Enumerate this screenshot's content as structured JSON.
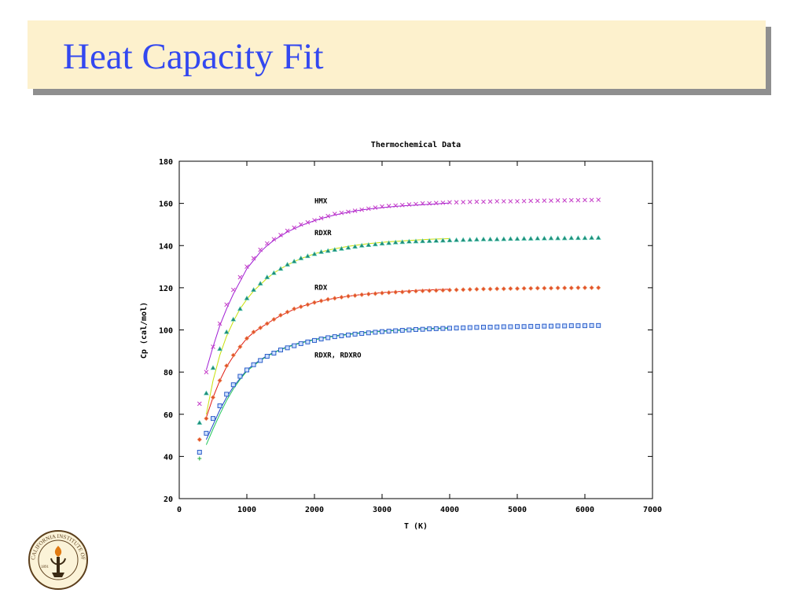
{
  "slide": {
    "title": "Heat Capacity Fit"
  },
  "logo": {
    "text": "CALIFORNIA INSTITUTE OF TECHNOLOGY",
    "year": "1891"
  },
  "colors": {
    "title": "#3348f0",
    "title_bg": "#fdf1cd",
    "title_shadow": "#8f8f8f",
    "hmx": "#c43cc7",
    "rdxr": "#1e8c78",
    "rdx": "#e1542b",
    "rdxr_rdxro": "#2c5fc9",
    "fit_hmx": "#a01dd4",
    "fit_rdxr": "#c8e00a",
    "fit_rdx": "#e01a10",
    "fit_blue": "#1b45c4",
    "fit_green": "#20c65a"
  },
  "chart_data": {
    "type": "scatter",
    "title": "Thermochemical Data",
    "xlabel": "T (K)",
    "ylabel": "Cp (cal/mol)",
    "xlim": [
      0,
      7000
    ],
    "ylim": [
      20,
      180
    ],
    "xticks": [
      0,
      1000,
      2000,
      3000,
      4000,
      5000,
      6000,
      7000
    ],
    "yticks": [
      20,
      40,
      60,
      80,
      100,
      120,
      140,
      160,
      180
    ],
    "grid": false,
    "legend": "none",
    "annotations": [
      {
        "text": "HMX",
        "x": 2000,
        "y": 160
      },
      {
        "text": "RDXR",
        "x": 2000,
        "y": 145
      },
      {
        "text": "RDX",
        "x": 2000,
        "y": 119
      },
      {
        "text": "RDXR, RDXRO",
        "x": 2000,
        "y": 87
      }
    ],
    "series": [
      {
        "marker": "x",
        "color": "#c43cc7",
        "x": [
          300,
          400,
          500,
          600,
          700,
          800,
          900,
          1000,
          1100,
          1200,
          1300,
          1400,
          1500,
          1600,
          1700,
          1800,
          1900,
          2000,
          2100,
          2200,
          2300,
          2400,
          2500,
          2600,
          2700,
          2800,
          2900,
          3000,
          3100,
          3200,
          3300,
          3400,
          3500,
          3600,
          3700,
          3800,
          3900,
          4000,
          4100,
          4200,
          4300,
          4400,
          4500,
          4600,
          4700,
          4800,
          4900,
          5000,
          5100,
          5200,
          5300,
          5400,
          5500,
          5600,
          5700,
          5800,
          5900,
          6000,
          6100,
          6200
        ],
        "y": [
          65,
          80,
          92,
          103,
          112,
          119,
          125,
          130,
          134,
          138,
          141,
          143,
          145,
          147,
          148.5,
          150,
          151,
          152,
          153,
          154,
          155,
          155.5,
          156,
          156.5,
          157,
          157.5,
          158,
          158.5,
          158.8,
          159,
          159.2,
          159.5,
          159.7,
          160,
          160,
          160.2,
          160.3,
          160.5,
          160.5,
          160.6,
          160.7,
          160.8,
          160.8,
          160.9,
          161,
          161,
          161,
          161,
          161.1,
          161.2,
          161.2,
          161.3,
          161.3,
          161.4,
          161.4,
          161.5,
          161.5,
          161.6,
          161.6,
          161.7
        ]
      },
      {
        "marker": "triangle",
        "color": "#1e8c78",
        "x": [
          300,
          400,
          500,
          600,
          700,
          800,
          900,
          1000,
          1100,
          1200,
          1300,
          1400,
          1500,
          1600,
          1700,
          1800,
          1900,
          2000,
          2100,
          2200,
          2300,
          2400,
          2500,
          2600,
          2700,
          2800,
          2900,
          3000,
          3100,
          3200,
          3300,
          3400,
          3500,
          3600,
          3700,
          3800,
          3900,
          4000,
          4100,
          4200,
          4300,
          4400,
          4500,
          4600,
          4700,
          4800,
          4900,
          5000,
          5100,
          5200,
          5300,
          5400,
          5500,
          5600,
          5700,
          5800,
          5900,
          6000,
          6100,
          6200
        ],
        "y": [
          56,
          70,
          82,
          91,
          99,
          105,
          110,
          115,
          119,
          122,
          125,
          127,
          129,
          131,
          132.5,
          134,
          135,
          136,
          137,
          137.5,
          138,
          138.5,
          139,
          139.5,
          140,
          140.3,
          140.6,
          141,
          141.2,
          141.5,
          141.7,
          141.9,
          142,
          142.1,
          142.2,
          142.3,
          142.4,
          142.5,
          142.6,
          142.7,
          142.8,
          142.9,
          143,
          143,
          143,
          143.1,
          143.2,
          143.2,
          143.3,
          143.3,
          143.4,
          143.4,
          143.5,
          143.5,
          143.5,
          143.6,
          143.6,
          143.6,
          143.7,
          143.7
        ]
      },
      {
        "marker": "diamond",
        "color": "#e1542b",
        "x": [
          300,
          400,
          500,
          600,
          700,
          800,
          900,
          1000,
          1100,
          1200,
          1300,
          1400,
          1500,
          1600,
          1700,
          1800,
          1900,
          2000,
          2100,
          2200,
          2300,
          2400,
          2500,
          2600,
          2700,
          2800,
          2900,
          3000,
          3100,
          3200,
          3300,
          3400,
          3500,
          3600,
          3700,
          3800,
          3900,
          4000,
          4100,
          4200,
          4300,
          4400,
          4500,
          4600,
          4700,
          4800,
          4900,
          5000,
          5100,
          5200,
          5300,
          5400,
          5500,
          5600,
          5700,
          5800,
          5900,
          6000,
          6100,
          6200
        ],
        "y": [
          48,
          58,
          68,
          76,
          83,
          88,
          92,
          96,
          99,
          101,
          103,
          105,
          107,
          108.5,
          110,
          111,
          112,
          113,
          113.8,
          114.5,
          115,
          115.5,
          116,
          116.3,
          116.7,
          117,
          117.2,
          117.5,
          117.7,
          117.9,
          118,
          118.2,
          118.4,
          118.5,
          118.6,
          118.7,
          118.8,
          118.9,
          119,
          119.1,
          119.2,
          119.3,
          119.4,
          119.4,
          119.5,
          119.5,
          119.6,
          119.6,
          119.7,
          119.7,
          119.8,
          119.8,
          119.8,
          119.9,
          119.9,
          119.9,
          120,
          120,
          120,
          120
        ]
      },
      {
        "marker": "square",
        "color": "#2c5fc9",
        "x": [
          300,
          400,
          500,
          600,
          700,
          800,
          900,
          1000,
          1100,
          1200,
          1300,
          1400,
          1500,
          1600,
          1700,
          1800,
          1900,
          2000,
          2100,
          2200,
          2300,
          2400,
          2500,
          2600,
          2700,
          2800,
          2900,
          3000,
          3100,
          3200,
          3300,
          3400,
          3500,
          3600,
          3700,
          3800,
          3900,
          4000,
          4100,
          4200,
          4300,
          4400,
          4500,
          4600,
          4700,
          4800,
          4900,
          5000,
          5100,
          5200,
          5300,
          5400,
          5500,
          5600,
          5700,
          5800,
          5900,
          6000,
          6100,
          6200
        ],
        "y": [
          42,
          51,
          58,
          64,
          69.5,
          74,
          78,
          81,
          83.5,
          85.5,
          87.5,
          89,
          90.5,
          91.5,
          92.5,
          93.5,
          94.3,
          95,
          95.7,
          96.3,
          96.8,
          97.2,
          97.6,
          98,
          98.3,
          98.6,
          98.9,
          99.2,
          99.4,
          99.6,
          99.8,
          100,
          100.2,
          100.3,
          100.5,
          100.6,
          100.7,
          100.8,
          100.9,
          101,
          101.1,
          101.2,
          101.3,
          101.3,
          101.4,
          101.5,
          101.5,
          101.6,
          101.6,
          101.7,
          101.7,
          101.8,
          101.8,
          101.9,
          101.9,
          102,
          102,
          102,
          102.1,
          102.1
        ]
      },
      {
        "marker": "plus",
        "color": "#1eaa3c",
        "x": [
          300
        ],
        "y": [
          39
        ]
      },
      {
        "marker": "line",
        "color": "#a01dd4",
        "x": [
          400,
          500,
          600,
          700,
          800,
          900,
          1000,
          1100,
          1200,
          1300,
          1400,
          1500,
          1600,
          1700,
          1800,
          1900,
          2000,
          2100,
          2200,
          2300,
          2400,
          2500,
          2600,
          2700,
          2800,
          2900,
          3000,
          3100,
          3200,
          3300,
          3400,
          3500,
          3600,
          3700,
          3800,
          3900,
          4000
        ],
        "y": [
          81,
          92,
          102,
          110,
          117,
          123,
          129,
          133,
          137,
          140,
          142.5,
          144.5,
          146.5,
          148,
          149.5,
          150.7,
          151.8,
          152.8,
          153.7,
          154.5,
          155.2,
          155.8,
          156.4,
          156.9,
          157.3,
          157.7,
          158,
          158.3,
          158.6,
          158.8,
          159,
          159.2,
          159.4,
          159.6,
          159.8,
          160,
          160.2
        ]
      },
      {
        "marker": "line",
        "color": "#c8e00a",
        "x": [
          400,
          500,
          600,
          700,
          800,
          900,
          1000,
          1100,
          1200,
          1300,
          1400,
          1500,
          1600,
          1700,
          1800,
          1900,
          2000,
          2100,
          2200,
          2300,
          2400,
          2500,
          2600,
          2700,
          2800,
          2900,
          3000,
          3100,
          3200,
          3300,
          3400,
          3500,
          3600,
          3700,
          3800,
          3900,
          4000
        ],
        "y": [
          60,
          76,
          88,
          97,
          104,
          110,
          114.5,
          118.5,
          121.5,
          124.5,
          127,
          129,
          130.8,
          132.4,
          133.8,
          135,
          136.1,
          137,
          137.8,
          138.5,
          139.1,
          139.6,
          140.1,
          140.5,
          140.9,
          141.2,
          141.5,
          141.8,
          142,
          142.2,
          142.4,
          142.6,
          142.8,
          143,
          143.1,
          143.2,
          143.3
        ]
      },
      {
        "marker": "line",
        "color": "#e01a10",
        "x": [
          400,
          500,
          600,
          700,
          800,
          900,
          1000,
          1100,
          1200,
          1300,
          1400,
          1500,
          1600,
          1700,
          1800,
          1900,
          2000,
          2100,
          2200,
          2300,
          2400,
          2500,
          2600,
          2700,
          2800,
          2900,
          3000,
          3100,
          3200,
          3300,
          3400,
          3500,
          3600,
          3700,
          3800,
          3900,
          4000
        ],
        "y": [
          58.5,
          68,
          76,
          82.5,
          87.5,
          92,
          96,
          98.8,
          101,
          103,
          105,
          106.8,
          108.3,
          109.8,
          111,
          112,
          113,
          113.7,
          114.4,
          115,
          115.5,
          116,
          116.4,
          116.8,
          117.1,
          117.4,
          117.7,
          117.9,
          118.1,
          118.3,
          118.5,
          118.7,
          118.9,
          119,
          119.1,
          119.2,
          119.3
        ]
      },
      {
        "marker": "line",
        "color": "#1b45c4",
        "x": [
          400,
          500,
          600,
          700,
          800,
          900,
          1000,
          1100,
          1200,
          1300,
          1400,
          1500,
          1600,
          1700,
          1800,
          1900,
          2000,
          2100,
          2200,
          2300,
          2400,
          2500,
          2600,
          2700,
          2800,
          2900,
          3000,
          3100,
          3200,
          3300,
          3400,
          3500,
          3600,
          3700,
          3800,
          3900,
          4000
        ],
        "y": [
          48,
          55,
          62,
          68,
          73,
          77,
          81,
          83.5,
          85.8,
          87.8,
          89.4,
          90.8,
          92,
          93.1,
          94,
          94.8,
          95.5,
          96.1,
          96.7,
          97.2,
          97.6,
          98,
          98.4,
          98.7,
          99,
          99.3,
          99.5,
          99.7,
          99.9,
          100.1,
          100.3,
          100.5,
          100.6,
          100.7,
          100.8,
          100.9,
          101
        ]
      },
      {
        "marker": "line",
        "color": "#20c65a",
        "x": [
          400,
          500,
          600,
          700,
          800,
          900,
          1000,
          1100,
          1200,
          1300,
          1400,
          1500,
          1600,
          1700,
          1800,
          1900,
          2000,
          2100,
          2200,
          2300,
          2400,
          2500,
          2600,
          2700,
          2800,
          2900,
          3000,
          3100,
          3200,
          3300,
          3400,
          3500,
          3600,
          3700,
          3800,
          3900,
          4000
        ],
        "y": [
          45.5,
          53,
          60,
          66.5,
          72,
          76.5,
          80.5,
          83,
          85.5,
          87.5,
          89.2,
          90.6,
          91.8,
          92.9,
          93.8,
          94.6,
          95.3,
          95.9,
          96.5,
          97,
          97.4,
          97.8,
          98.2,
          98.5,
          98.8,
          99.1,
          99.3,
          99.5,
          99.7,
          99.9,
          100.1,
          100.3,
          100.4,
          100.5,
          100.6,
          100.7,
          100.8
        ]
      }
    ]
  }
}
